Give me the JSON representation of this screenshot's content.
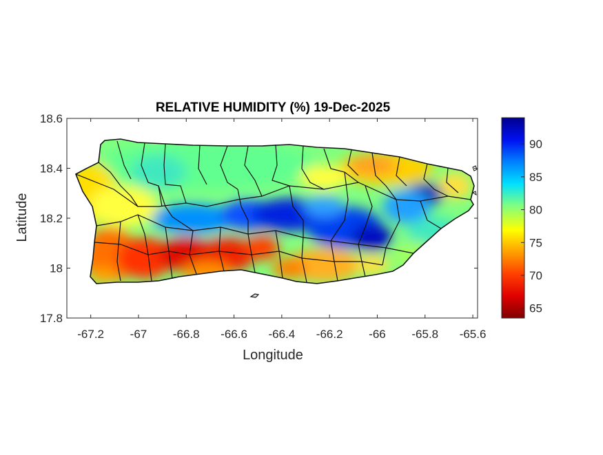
{
  "figure": {
    "title": "RELATIVE HUMIDITY (%) 19-Dec-2025",
    "xlabel": "Longitude",
    "ylabel": "Latitude"
  },
  "map": {
    "region": "Puerto Rico",
    "variable": "Relative humidity (%)",
    "xlim": [
      -67.3,
      -65.58
    ],
    "ylim": [
      17.8,
      18.6
    ],
    "x_ticks": [
      -67.2,
      -67,
      -66.8,
      -66.6,
      -66.4,
      -66.2,
      -66,
      -65.8,
      -65.6
    ],
    "x_tick_labels": [
      "-67.2",
      "-67",
      "-66.8",
      "-66.6",
      "-66.4",
      "-66.2",
      "-66",
      "-65.8",
      "-65.6"
    ],
    "y_ticks": [
      17.8,
      18,
      18.2,
      18.4,
      18.6
    ],
    "y_tick_labels": [
      "17.8",
      "18",
      "18.2",
      "18.4",
      "18.6"
    ]
  },
  "colorbar": {
    "colormap": "jet",
    "range": [
      63.5,
      94
    ],
    "ticks": [
      65,
      70,
      75,
      80,
      85,
      90
    ],
    "tick_labels": [
      "65",
      "70",
      "75",
      "80",
      "85",
      "90"
    ],
    "colors": [
      "#800000",
      "#ff0000",
      "#ff8000",
      "#ffff00",
      "#80ff80",
      "#00ffff",
      "#0080ff",
      "#0000ff",
      "#000080"
    ]
  }
}
